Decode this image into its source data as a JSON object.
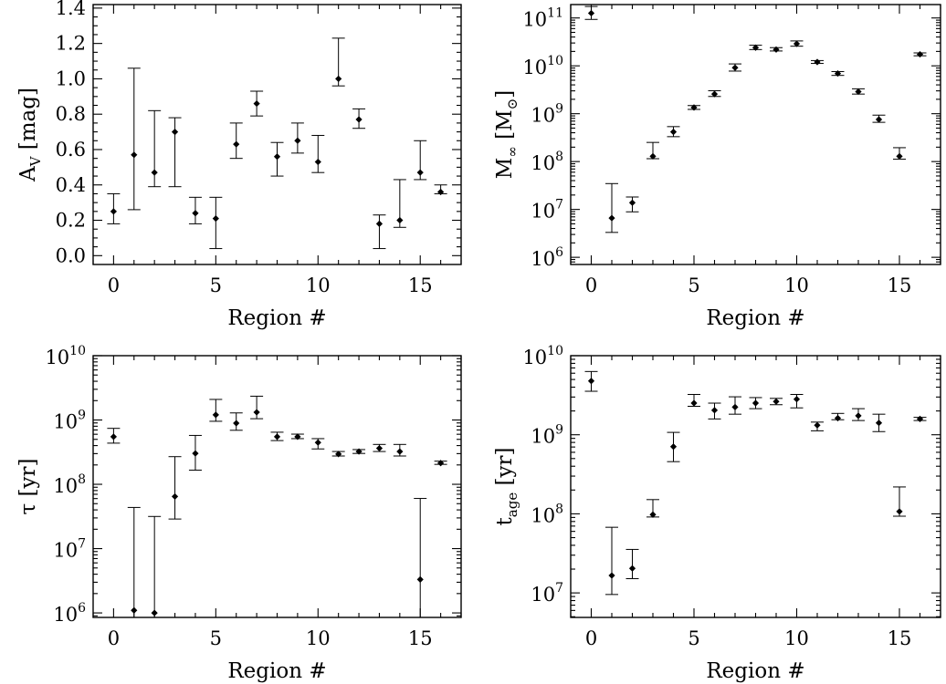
{
  "chart_data": [
    {
      "type": "scatter",
      "panel": "top-left",
      "xlabel": "Region #",
      "ylabel": "A_V [mag]",
      "ylabel_parts": {
        "main": "A",
        "sub": "V",
        "rest": " [mag]"
      },
      "xlim": [
        -1,
        17
      ],
      "ylim": [
        -0.05,
        1.42
      ],
      "yscale": "linear",
      "xticks": [
        0,
        5,
        10,
        15
      ],
      "yticks": [
        0.0,
        0.2,
        0.4,
        0.6,
        0.8,
        1.0,
        1.2,
        1.4
      ],
      "ytick_labels": [
        "0.0",
        "0.2",
        "0.4",
        "0.6",
        "0.8",
        "1.0",
        "1.2",
        "1.4"
      ],
      "points": [
        {
          "x": 0,
          "y": 0.25,
          "lo": 0.18,
          "hi": 0.35
        },
        {
          "x": 1,
          "y": 0.57,
          "lo": 0.26,
          "hi": 1.06
        },
        {
          "x": 2,
          "y": 0.47,
          "lo": 0.39,
          "hi": 0.82
        },
        {
          "x": 3,
          "y": 0.7,
          "lo": 0.39,
          "hi": 0.78
        },
        {
          "x": 4,
          "y": 0.24,
          "lo": 0.18,
          "hi": 0.33
        },
        {
          "x": 5,
          "y": 0.21,
          "lo": 0.04,
          "hi": 0.33
        },
        {
          "x": 6,
          "y": 0.63,
          "lo": 0.55,
          "hi": 0.75
        },
        {
          "x": 7,
          "y": 0.86,
          "lo": 0.79,
          "hi": 0.93
        },
        {
          "x": 8,
          "y": 0.56,
          "lo": 0.45,
          "hi": 0.64
        },
        {
          "x": 9,
          "y": 0.65,
          "lo": 0.58,
          "hi": 0.75
        },
        {
          "x": 10,
          "y": 0.53,
          "lo": 0.47,
          "hi": 0.68
        },
        {
          "x": 11,
          "y": 1.0,
          "lo": 0.96,
          "hi": 1.23
        },
        {
          "x": 12,
          "y": 0.77,
          "lo": 0.72,
          "hi": 0.83
        },
        {
          "x": 13,
          "y": 0.18,
          "lo": 0.04,
          "hi": 0.23
        },
        {
          "x": 14,
          "y": 0.2,
          "lo": 0.16,
          "hi": 0.43
        },
        {
          "x": 15,
          "y": 0.47,
          "lo": 0.43,
          "hi": 0.65
        },
        {
          "x": 16,
          "y": 0.36,
          "lo": 0.35,
          "hi": 0.4
        }
      ]
    },
    {
      "type": "scatter",
      "panel": "top-right",
      "xlabel": "Region #",
      "ylabel": "M_∞ [M_⊙]",
      "ylabel_parts": {
        "main": "M",
        "sub": "∞",
        "rest": " [M",
        "sub2": "⊙",
        "end": "]"
      },
      "xlim": [
        -1,
        17
      ],
      "ylim": [
        5.85,
        11.28
      ],
      "yscale": "log",
      "xticks": [
        0,
        5,
        10,
        15
      ],
      "ytick_exponents": [
        6,
        7,
        8,
        9,
        10,
        11
      ],
      "ytick_base": "10",
      "points": [
        {
          "x": 0,
          "y": 11.1,
          "lo": 10.97,
          "hi": 11.24
        },
        {
          "x": 1,
          "y": 6.82,
          "lo": 6.52,
          "hi": 7.54
        },
        {
          "x": 2,
          "y": 7.14,
          "lo": 6.95,
          "hi": 7.26
        },
        {
          "x": 3,
          "y": 8.11,
          "lo": 8.06,
          "hi": 8.4
        },
        {
          "x": 4,
          "y": 8.62,
          "lo": 8.52,
          "hi": 8.73
        },
        {
          "x": 5,
          "y": 9.13,
          "lo": 9.09,
          "hi": 9.17
        },
        {
          "x": 6,
          "y": 9.41,
          "lo": 9.36,
          "hi": 9.48
        },
        {
          "x": 7,
          "y": 9.96,
          "lo": 9.89,
          "hi": 10.04
        },
        {
          "x": 8,
          "y": 10.38,
          "lo": 10.34,
          "hi": 10.43
        },
        {
          "x": 9,
          "y": 10.34,
          "lo": 10.31,
          "hi": 10.38
        },
        {
          "x": 10,
          "y": 10.46,
          "lo": 10.41,
          "hi": 10.52
        },
        {
          "x": 11,
          "y": 10.08,
          "lo": 10.05,
          "hi": 10.11
        },
        {
          "x": 12,
          "y": 9.84,
          "lo": 9.8,
          "hi": 9.88
        },
        {
          "x": 13,
          "y": 9.46,
          "lo": 9.41,
          "hi": 9.52
        },
        {
          "x": 14,
          "y": 8.88,
          "lo": 8.82,
          "hi": 8.97
        },
        {
          "x": 15,
          "y": 8.11,
          "lo": 8.05,
          "hi": 8.29
        },
        {
          "x": 16,
          "y": 10.24,
          "lo": 10.21,
          "hi": 10.27
        }
      ]
    },
    {
      "type": "scatter",
      "panel": "bottom-left",
      "xlabel": "Region #",
      "ylabel": "τ [yr]",
      "ylabel_parts": {
        "main": "τ",
        "sub": "",
        "rest": " [yr]"
      },
      "xlim": [
        -1,
        17
      ],
      "ylim": [
        5.93,
        10.0
      ],
      "yscale": "log",
      "xticks": [
        0,
        5,
        10,
        15
      ],
      "ytick_exponents": [
        6,
        7,
        8,
        9,
        10
      ],
      "ytick_base": "10",
      "points": [
        {
          "x": 0,
          "y": 8.74,
          "lo": 8.64,
          "hi": 8.87
        },
        {
          "x": 1,
          "y": 6.04,
          "lo": 5.93,
          "hi": 7.64
        },
        {
          "x": 2,
          "y": 6.0,
          "lo": 5.93,
          "hi": 7.5
        },
        {
          "x": 3,
          "y": 7.81,
          "lo": 7.46,
          "hi": 8.43
        },
        {
          "x": 4,
          "y": 8.48,
          "lo": 8.22,
          "hi": 8.76
        },
        {
          "x": 5,
          "y": 9.08,
          "lo": 8.98,
          "hi": 9.32
        },
        {
          "x": 6,
          "y": 8.95,
          "lo": 8.84,
          "hi": 9.11
        },
        {
          "x": 7,
          "y": 9.12,
          "lo": 9.02,
          "hi": 9.37
        },
        {
          "x": 8,
          "y": 8.74,
          "lo": 8.68,
          "hi": 8.81
        },
        {
          "x": 9,
          "y": 8.74,
          "lo": 8.71,
          "hi": 8.78
        },
        {
          "x": 10,
          "y": 8.65,
          "lo": 8.55,
          "hi": 8.71
        },
        {
          "x": 11,
          "y": 8.47,
          "lo": 8.44,
          "hi": 8.51
        },
        {
          "x": 12,
          "y": 8.51,
          "lo": 8.48,
          "hi": 8.54
        },
        {
          "x": 13,
          "y": 8.56,
          "lo": 8.51,
          "hi": 8.62
        },
        {
          "x": 14,
          "y": 8.51,
          "lo": 8.44,
          "hi": 8.62
        },
        {
          "x": 15,
          "y": 6.52,
          "lo": 5.93,
          "hi": 7.78
        },
        {
          "x": 16,
          "y": 8.33,
          "lo": 8.31,
          "hi": 8.36
        }
      ]
    },
    {
      "type": "scatter",
      "panel": "bottom-right",
      "xlabel": "Region #",
      "ylabel": "t_age [yr]",
      "ylabel_parts": {
        "main": "t",
        "sub": "age",
        "rest": " [yr]"
      },
      "xlim": [
        -1,
        17
      ],
      "ylim": [
        6.69,
        10.0
      ],
      "yscale": "log",
      "xticks": [
        0,
        5,
        10,
        15
      ],
      "ytick_exponents": [
        7,
        8,
        9,
        10
      ],
      "ytick_base": "10",
      "points": [
        {
          "x": 0,
          "y": 9.68,
          "lo": 9.55,
          "hi": 9.8
        },
        {
          "x": 1,
          "y": 7.22,
          "lo": 6.98,
          "hi": 7.83
        },
        {
          "x": 2,
          "y": 7.31,
          "lo": 7.18,
          "hi": 7.55
        },
        {
          "x": 3,
          "y": 7.99,
          "lo": 7.96,
          "hi": 8.18
        },
        {
          "x": 4,
          "y": 8.85,
          "lo": 8.66,
          "hi": 9.03
        },
        {
          "x": 5,
          "y": 9.4,
          "lo": 9.36,
          "hi": 9.51
        },
        {
          "x": 6,
          "y": 9.31,
          "lo": 9.2,
          "hi": 9.4
        },
        {
          "x": 7,
          "y": 9.35,
          "lo": 9.26,
          "hi": 9.48
        },
        {
          "x": 8,
          "y": 9.4,
          "lo": 9.33,
          "hi": 9.47
        },
        {
          "x": 9,
          "y": 9.42,
          "lo": 9.38,
          "hi": 9.46
        },
        {
          "x": 10,
          "y": 9.45,
          "lo": 9.34,
          "hi": 9.51
        },
        {
          "x": 11,
          "y": 9.12,
          "lo": 9.05,
          "hi": 9.16
        },
        {
          "x": 12,
          "y": 9.21,
          "lo": 9.19,
          "hi": 9.27
        },
        {
          "x": 13,
          "y": 9.24,
          "lo": 9.18,
          "hi": 9.33
        },
        {
          "x": 14,
          "y": 9.15,
          "lo": 9.04,
          "hi": 9.26
        },
        {
          "x": 15,
          "y": 8.03,
          "lo": 7.97,
          "hi": 8.34
        },
        {
          "x": 16,
          "y": 9.2,
          "lo": 9.18,
          "hi": 9.22
        }
      ]
    }
  ]
}
